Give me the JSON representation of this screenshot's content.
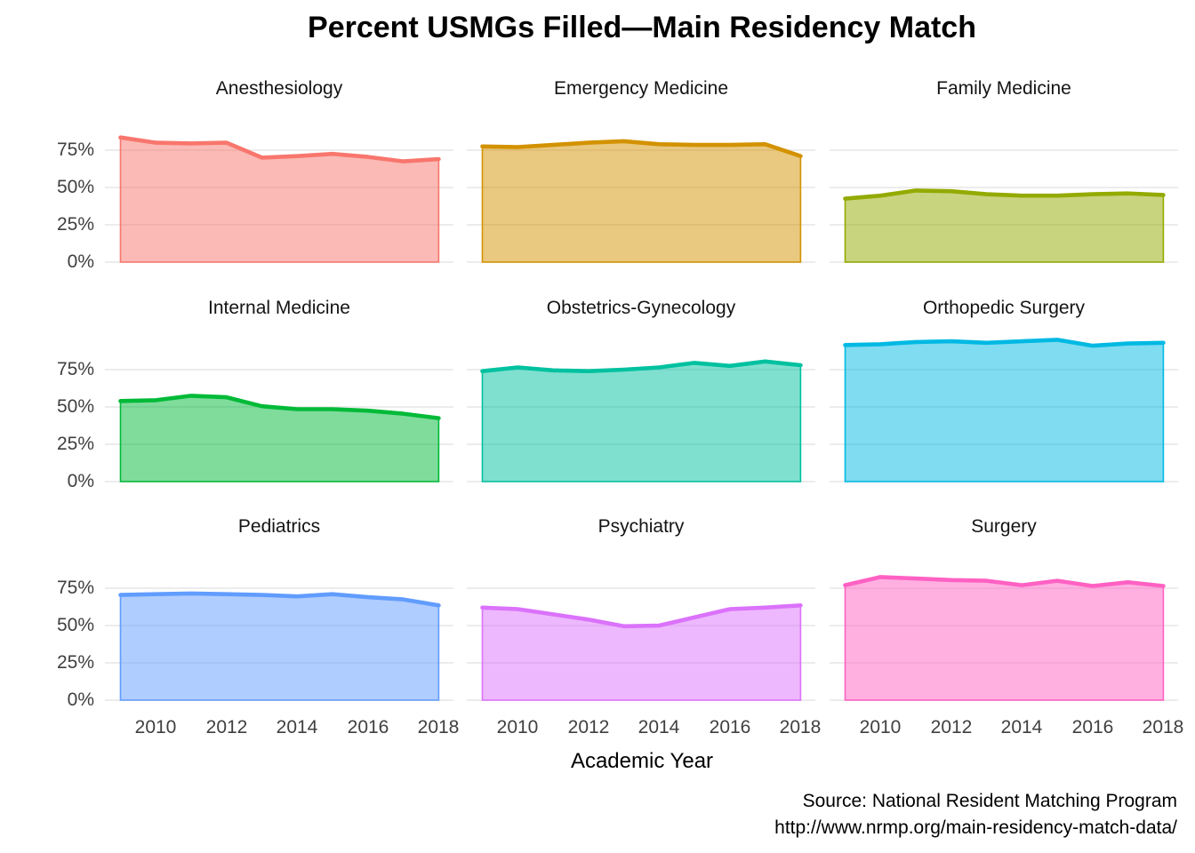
{
  "title": "Percent USMGs Filled—Main Residency Match",
  "x_axis_title": "Academic Year",
  "caption": [
    "Source: National Resident Matching Program",
    "http://www.nrmp.org/main-residency-match-data/"
  ],
  "chart_data": {
    "type": "area",
    "layout": "facet-grid-3x3",
    "x": [
      2009,
      2010,
      2011,
      2012,
      2013,
      2014,
      2015,
      2016,
      2017,
      2018
    ],
    "x_ticks": [
      "2010",
      "2012",
      "2014",
      "2016",
      "2018"
    ],
    "y_ticks": [
      "75%",
      "50%",
      "25%",
      "0%"
    ],
    "y_tick_values": [
      75,
      50,
      25,
      0
    ],
    "ylim": [
      0,
      100
    ],
    "grid": "horizontal-only",
    "gridline_color": "#E9E9E9",
    "fill_opacity": 0.5,
    "xlabel": "Academic Year",
    "ylabel": "",
    "panels": [
      {
        "title": "Anesthesiology",
        "color": "#F8766D",
        "values": [
          83.5,
          80,
          79.5,
          80,
          70,
          71,
          72.5,
          70.5,
          67.5,
          69
        ]
      },
      {
        "title": "Emergency Medicine",
        "color": "#D39200",
        "values": [
          77.5,
          77,
          78.5,
          80,
          81,
          79,
          78.5,
          78.5,
          79,
          71
        ]
      },
      {
        "title": "Family Medicine",
        "color": "#93AA00",
        "values": [
          42.5,
          44.5,
          48,
          47.5,
          45.5,
          44.5,
          44.5,
          45.5,
          46,
          45
        ]
      },
      {
        "title": "Internal Medicine",
        "color": "#00BA38",
        "values": [
          54,
          54.5,
          57.5,
          56.5,
          50.5,
          48.5,
          48.5,
          47.5,
          45.5,
          42.5
        ]
      },
      {
        "title": "Obstetrics-Gynecology",
        "color": "#00C19F",
        "values": [
          74,
          76.5,
          74.5,
          74,
          75,
          76.5,
          79.5,
          77.5,
          80.5,
          78
        ]
      },
      {
        "title": "Orthopedic Surgery",
        "color": "#00B9E3",
        "values": [
          91.5,
          92,
          93.5,
          94,
          93,
          94,
          95,
          91,
          92.5,
          93
        ]
      },
      {
        "title": "Pediatrics",
        "color": "#619CFF",
        "values": [
          70.5,
          71,
          71.5,
          71,
          70.5,
          69.5,
          71,
          69,
          67.5,
          63.5
        ]
      },
      {
        "title": "Psychiatry",
        "color": "#DB72FB",
        "values": [
          62,
          61,
          57.5,
          54,
          49.5,
          50,
          55.5,
          61,
          62,
          63.5
        ]
      },
      {
        "title": "Surgery",
        "color": "#FF61C3",
        "values": [
          77,
          82.5,
          81.5,
          80.5,
          80,
          77,
          80,
          76.5,
          79,
          76.5
        ]
      }
    ]
  }
}
